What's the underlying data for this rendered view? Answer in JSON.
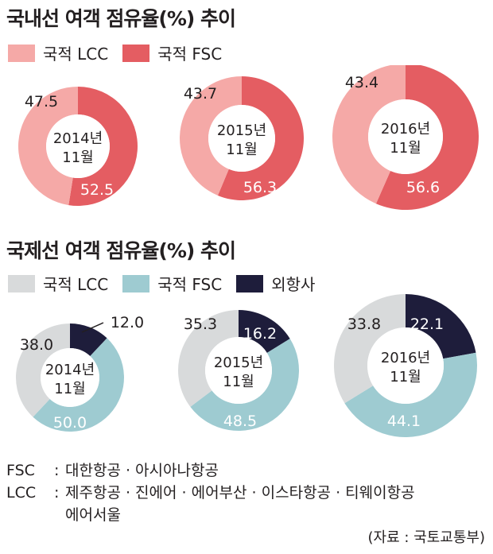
{
  "domestic": {
    "title": "국내선 여객 점유율(%) 추이",
    "legend": [
      {
        "label": "국적 LCC",
        "color": "#f5a9a7"
      },
      {
        "label": "국적 FSC",
        "color": "#e45d62"
      }
    ]
  },
  "international": {
    "title": "국제선 여객 점유율(%) 추이",
    "legend": [
      {
        "label": "국적 LCC",
        "color": "#d8dadb"
      },
      {
        "label": "국적 FSC",
        "color": "#9ecbd1"
      },
      {
        "label": "외항사",
        "color": "#1e1d3b"
      }
    ]
  },
  "chart_data": [
    {
      "type": "pie",
      "title": "국내선 여객 점유율(%) 추이",
      "series": [
        {
          "period_line1": "2014년",
          "period_line2": "11월",
          "slices": [
            {
              "name": "국적 FSC",
              "value": 52.5,
              "label": "52.5"
            },
            {
              "name": "국적 LCC",
              "value": 47.5,
              "label": "47.5"
            }
          ]
        },
        {
          "period_line1": "2015년",
          "period_line2": "11월",
          "slices": [
            {
              "name": "국적 FSC",
              "value": 56.3,
              "label": "56.3"
            },
            {
              "name": "국적 LCC",
              "value": 43.7,
              "label": "43.7"
            }
          ]
        },
        {
          "period_line1": "2016년",
          "period_line2": "11월",
          "slices": [
            {
              "name": "국적 FSC",
              "value": 56.6,
              "label": "56.6"
            },
            {
              "name": "국적 LCC",
              "value": 43.4,
              "label": "43.4"
            }
          ]
        }
      ]
    },
    {
      "type": "pie",
      "title": "국제선 여객 점유율(%) 추이",
      "series": [
        {
          "period_line1": "2014년",
          "period_line2": "11월",
          "slices": [
            {
              "name": "외항사",
              "value": 12.0,
              "label": "12.0"
            },
            {
              "name": "국적 FSC",
              "value": 50.0,
              "label": "50.0"
            },
            {
              "name": "국적 LCC",
              "value": 38.0,
              "label": "38.0"
            }
          ]
        },
        {
          "period_line1": "2015년",
          "period_line2": "11월",
          "slices": [
            {
              "name": "외항사",
              "value": 16.2,
              "label": "16.2"
            },
            {
              "name": "국적 FSC",
              "value": 48.5,
              "label": "48.5"
            },
            {
              "name": "국적 LCC",
              "value": 35.3,
              "label": "35.3"
            }
          ]
        },
        {
          "period_line1": "2016년",
          "period_line2": "11월",
          "slices": [
            {
              "name": "외항사",
              "value": 22.1,
              "label": "22.1"
            },
            {
              "name": "국적 FSC",
              "value": 44.1,
              "label": "44.1"
            },
            {
              "name": "국적 LCC",
              "value": 33.8,
              "label": "33.8"
            }
          ]
        }
      ]
    }
  ],
  "notes": [
    {
      "key": "FSC",
      "sep": ":",
      "lines": [
        "대한항공 · 아시아나항공"
      ]
    },
    {
      "key": "LCC",
      "sep": ":",
      "lines": [
        "제주항공 · 진에어 · 에어부산 · 이스타항공 · 티웨이항공",
        "에어서울"
      ]
    }
  ],
  "source": "(자료 : 국토교통부)"
}
